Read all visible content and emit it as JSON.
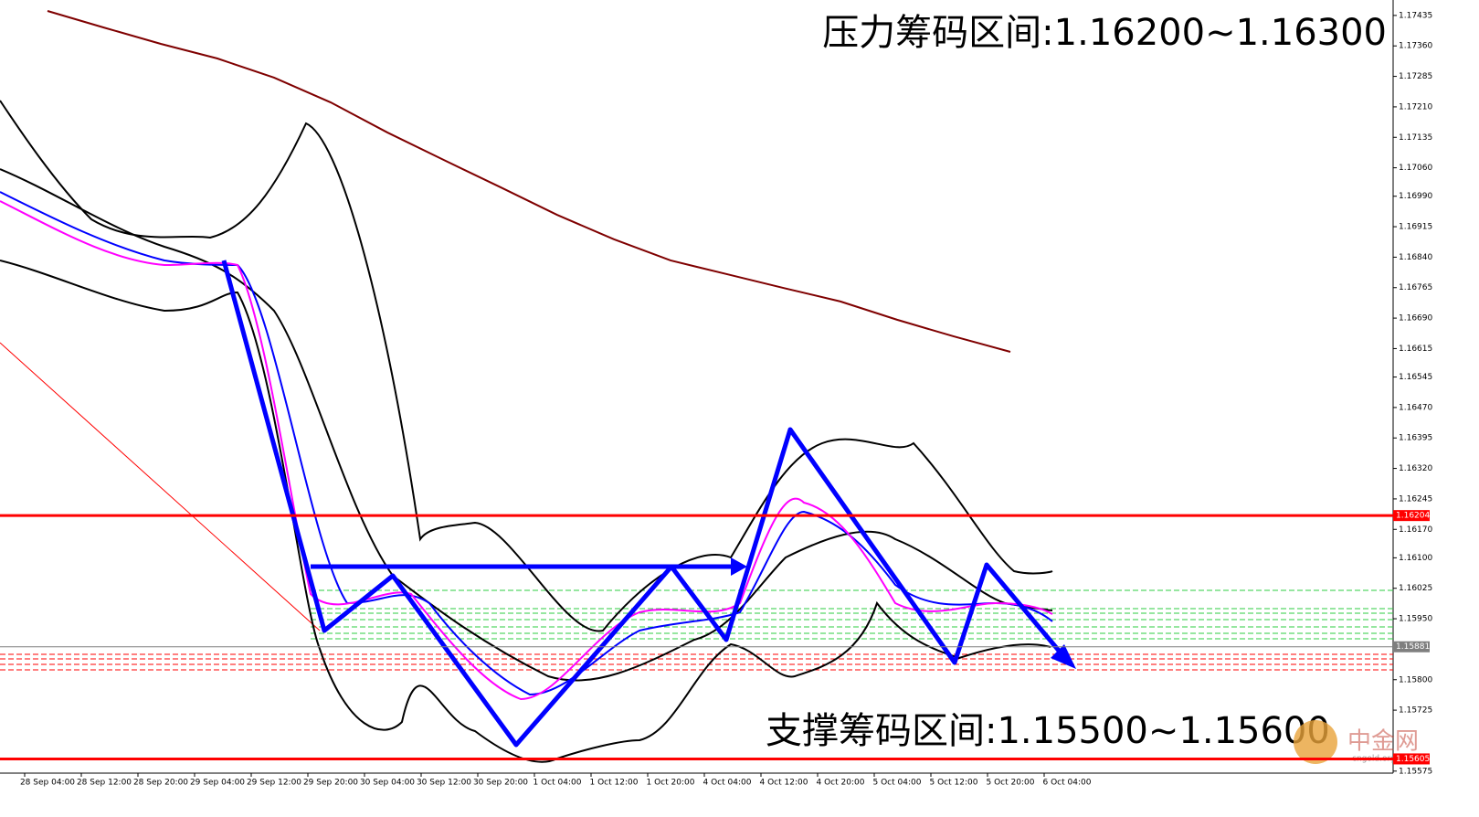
{
  "chart_data": {
    "type": "line",
    "annotations": [
      "压力筹码区间:1.16200~1.16300",
      "支撑筹码区间:1.15500~1.15600"
    ],
    "categories": [
      "28 Sep 04:00",
      "28 Sep 12:00",
      "28 Sep 20:00",
      "29 Sep 04:00",
      "29 Sep 12:00",
      "29 Sep 20:00",
      "30 Sep 04:00",
      "30 Sep 12:00",
      "30 Sep 20:00",
      "1 Oct 04:00",
      "1 Oct 12:00",
      "1 Oct 20:00",
      "4 Oct 04:00",
      "4 Oct 12:00",
      "4 Oct 20:00",
      "5 Oct 04:00",
      "5 Oct 12:00",
      "5 Oct 20:00",
      "6 Oct 04:00"
    ],
    "series": [
      {
        "color": "#7f0000",
        "values": [
          1.17446,
          1.17405,
          1.17365,
          1.17329,
          1.17282,
          1.17221,
          1.17147,
          1.17079,
          1.17012,
          1.16944,
          1.16884,
          1.16832,
          1.16798,
          1.16764,
          1.16731,
          1.16686,
          1.16645,
          1.16607,
          null
        ]
      }
    ],
    "levels": [
      {
        "value": 1.16204,
        "color": "#ff0000"
      },
      {
        "value": 1.15881,
        "color": "#7f7f7f"
      },
      {
        "value": 1.15605,
        "color": "#ff0000"
      }
    ],
    "ylim": [
      1.1557,
      1.17473
    ],
    "yticks": [
      1.17435,
      {
        "value": 1.1736,
        "label": "1.17360"
      },
      1.17285,
      {
        "value": 1.1721,
        "label": "1.17210"
      },
      1.17135,
      {
        "value": 1.1706,
        "label": "1.17060"
      },
      {
        "value": 1.1699,
        "label": "1.16990"
      },
      1.16915,
      {
        "value": 1.1684,
        "label": "1.16840"
      },
      1.16765,
      {
        "value": 1.1669,
        "label": "1.16690"
      },
      1.16615,
      1.16545,
      {
        "value": 1.1647,
        "label": "1.16470"
      },
      1.16395,
      {
        "value": 1.1632,
        "label": "1.16320"
      },
      1.16245,
      {
        "value": 1.1617,
        "label": "1.16170"
      },
      {
        "value": 1.161,
        "label": "1.16100"
      },
      1.16025,
      {
        "value": 1.1595,
        "label": "1.15950"
      },
      {
        "value": 1.158,
        "label": "1.15800"
      },
      1.15725,
      1.15575
    ],
    "watermark": "中金网",
    "watermark_sub": "cngold.org"
  }
}
